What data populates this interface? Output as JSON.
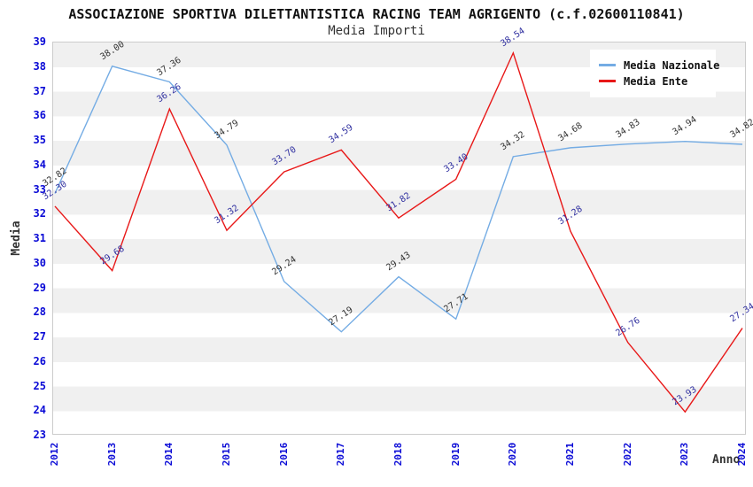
{
  "header": {
    "title": "ASSOCIAZIONE SPORTIVA DILETTANTISTICA RACING TEAM AGRIGENTO (c.f.02600110841)",
    "subtitle": "Media Importi"
  },
  "chart_data": {
    "type": "line",
    "title": "ASSOCIAZIONE SPORTIVA DILETTANTISTICA RACING TEAM AGRIGENTO (c.f.02600110841)",
    "subtitle": "Media Importi",
    "xlabel": "Anno",
    "ylabel": "Media",
    "x": [
      2012,
      2013,
      2014,
      2015,
      2016,
      2017,
      2018,
      2019,
      2020,
      2021,
      2022,
      2023,
      2024
    ],
    "series": [
      {
        "name": "Media Nazionale",
        "color": "#74ACE4",
        "label_color": "#333333",
        "values": [
          32.82,
          38.0,
          37.36,
          34.79,
          29.24,
          27.19,
          29.43,
          27.71,
          34.32,
          34.68,
          34.83,
          34.94,
          34.82
        ]
      },
      {
        "name": "Media Ente",
        "color": "#E81818",
        "label_color": "#3030A0",
        "values": [
          32.3,
          29.68,
          36.26,
          31.32,
          33.7,
          34.59,
          31.82,
          33.4,
          38.54,
          31.28,
          26.76,
          23.93,
          27.34
        ]
      }
    ],
    "ylim": [
      23,
      39
    ],
    "yticks": [
      23,
      24,
      25,
      26,
      27,
      28,
      29,
      30,
      31,
      32,
      33,
      34,
      35,
      36,
      37,
      38,
      39
    ],
    "tick_color": "#0A0AD6",
    "grid": "alternating-horizontal-bands",
    "band_color": "#F0F0F0",
    "legend_position": "top-right",
    "value_decimals": 2
  }
}
